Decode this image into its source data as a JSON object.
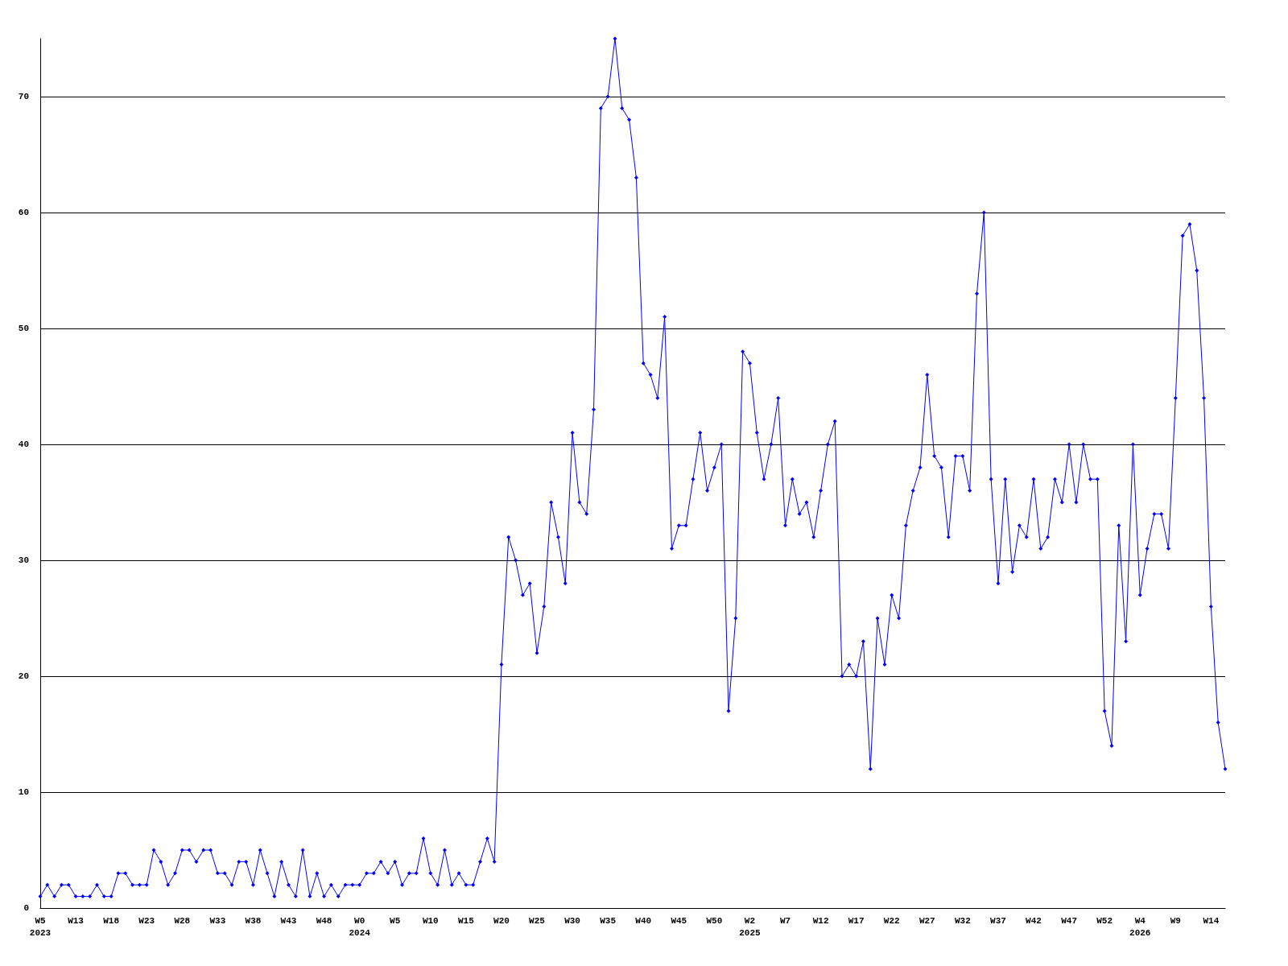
{
  "chart_data": {
    "type": "line",
    "categories": [
      "W5\n2023",
      null,
      null,
      null,
      null,
      "W13",
      null,
      null,
      null,
      null,
      "W18",
      null,
      null,
      null,
      null,
      "W23",
      null,
      null,
      null,
      null,
      "W28",
      null,
      null,
      null,
      null,
      "W33",
      null,
      null,
      null,
      null,
      "W38",
      null,
      null,
      null,
      null,
      "W43",
      null,
      null,
      null,
      null,
      "W48",
      null,
      null,
      null,
      null,
      "W0\n2024",
      null,
      null,
      null,
      null,
      "W5",
      null,
      null,
      null,
      null,
      "W10",
      null,
      null,
      null,
      null,
      "W15",
      null,
      null,
      null,
      null,
      "W20",
      null,
      null,
      null,
      null,
      "W25",
      null,
      null,
      null,
      null,
      "W30",
      null,
      null,
      null,
      null,
      "W35",
      null,
      null,
      null,
      null,
      "W40",
      null,
      null,
      null,
      null,
      "W45",
      null,
      null,
      null,
      null,
      "W50",
      null,
      null,
      null,
      null,
      "W2\n2025",
      null,
      null,
      null,
      null,
      "W7",
      null,
      null,
      null,
      null,
      "W12",
      null,
      null,
      null,
      null,
      "W17",
      null,
      null,
      null,
      null,
      "W22",
      null,
      null,
      null,
      null,
      "W27",
      null,
      null,
      null,
      null,
      "W32",
      null,
      null,
      null,
      null,
      "W37",
      null,
      null,
      null,
      null,
      "W42",
      null,
      null,
      null,
      null,
      "W47",
      null,
      null,
      null,
      null,
      "W52",
      null,
      null,
      null,
      null,
      "W4\n2026",
      null,
      null,
      null,
      null,
      "W9",
      null,
      null,
      null,
      null,
      "W14",
      null,
      null
    ],
    "series": [
      {
        "color": "#0000ff",
        "values": [
          1,
          2,
          1,
          2,
          2,
          1,
          1,
          1,
          2,
          1,
          1,
          3,
          3,
          2,
          2,
          2,
          5,
          4,
          2,
          3,
          5,
          5,
          4,
          5,
          5,
          3,
          3,
          2,
          4,
          4,
          2,
          5,
          3,
          1,
          4,
          2,
          1,
          5,
          1,
          3,
          1,
          2,
          1,
          2,
          2,
          2,
          3,
          3,
          4,
          3,
          4,
          2,
          3,
          3,
          6,
          3,
          2,
          5,
          2,
          3,
          2,
          2,
          4,
          6,
          4,
          21,
          32,
          30,
          27,
          28,
          22,
          26,
          35,
          32,
          28,
          41,
          35,
          34,
          43,
          69,
          70,
          75,
          69,
          68,
          63,
          47,
          46,
          44,
          51,
          31,
          33,
          33,
          37,
          41,
          36,
          38,
          40,
          17,
          25,
          48,
          47,
          41,
          37,
          40,
          44,
          33,
          37,
          34,
          35,
          32,
          36,
          40,
          42,
          20,
          21,
          20,
          23,
          12,
          25,
          21,
          27,
          25,
          33,
          36,
          38,
          46,
          39,
          38,
          32,
          39,
          39,
          36,
          53,
          60,
          37,
          28,
          37,
          29,
          33,
          32,
          37,
          31,
          32,
          37,
          35,
          40,
          35,
          40,
          37,
          37,
          17,
          14,
          33,
          23,
          40,
          27,
          31,
          34,
          34,
          31,
          44,
          58,
          59,
          55,
          44,
          26,
          16,
          12
        ]
      }
    ],
    "ylim": [
      0,
      75
    ],
    "yticks": [
      0,
      10,
      20,
      30,
      40,
      50,
      60,
      70
    ],
    "grid": "y",
    "marker": "diamond",
    "line_style": "solid"
  }
}
